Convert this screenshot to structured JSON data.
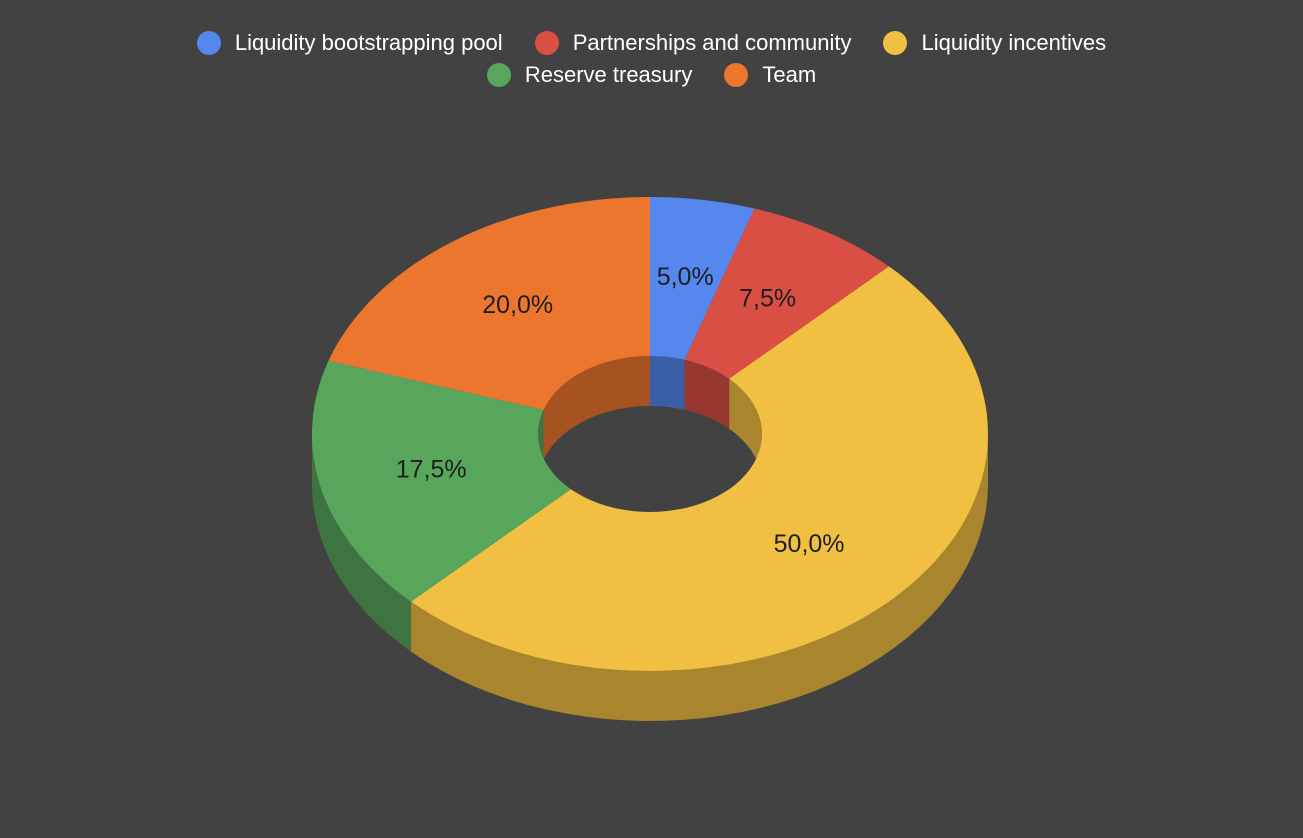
{
  "chart_data": {
    "type": "pie",
    "style": "3d-donut",
    "title": "",
    "legend_position": "top",
    "slices": [
      {
        "name": "Liquidity bootstrapping pool",
        "value": 5.0,
        "label": "5,0%",
        "color": "#5587EF"
      },
      {
        "name": "Partnerships and community",
        "value": 7.5,
        "label": "7,5%",
        "color": "#D94F43"
      },
      {
        "name": "Liquidity incentives",
        "value": 50.0,
        "label": "50,0%",
        "color": "#F1BF42"
      },
      {
        "name": "Reserve treasury",
        "value": 17.5,
        "label": "17,5%",
        "color": "#58A65C"
      },
      {
        "name": "Team",
        "value": 20.0,
        "label": "20,0%",
        "color": "#ED762F"
      }
    ]
  }
}
